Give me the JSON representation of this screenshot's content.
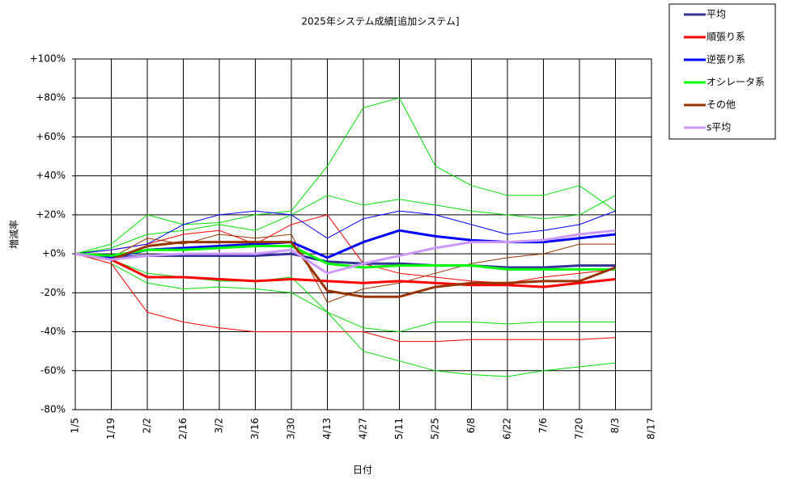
{
  "chart_data": {
    "type": "line",
    "title": "2025年システム成績[追加システム]",
    "x_label": "日付",
    "y_label": "増減率",
    "categories": [
      "1/5",
      "1/19",
      "2/2",
      "2/16",
      "3/2",
      "3/16",
      "3/30",
      "4/13",
      "4/27",
      "5/11",
      "5/25",
      "6/8",
      "6/22",
      "7/6",
      "7/20",
      "8/3",
      "8/17"
    ],
    "ylim": [
      -80,
      100
    ],
    "yticks": [
      {
        "value": -80,
        "label": "-80%"
      },
      {
        "value": -60,
        "label": "-60%"
      },
      {
        "value": -40,
        "label": "-40%"
      },
      {
        "value": -20,
        "label": "-20%"
      },
      {
        "value": 0,
        "label": "+0%"
      },
      {
        "value": 20,
        "label": "+20%"
      },
      {
        "value": 40,
        "label": "+40%"
      },
      {
        "value": 60,
        "label": "+60%"
      },
      {
        "value": 80,
        "label": "+80%"
      },
      {
        "value": 100,
        "label": "+100%"
      }
    ],
    "grid": true,
    "legend": "outside-top-right",
    "background_series": [
      {
        "color": "#00dd00",
        "values": [
          0,
          5,
          20,
          15,
          16,
          20,
          22,
          45,
          75,
          80,
          45,
          35,
          30,
          30,
          35,
          22,
          null
        ]
      },
      {
        "color": "#00dd00",
        "values": [
          0,
          -5,
          -15,
          -18,
          -17,
          -18,
          -20,
          -30,
          -50,
          -55,
          -60,
          -62,
          -63,
          -60,
          -58,
          -56,
          null
        ]
      },
      {
        "color": "#00dd00",
        "values": [
          0,
          -3,
          -10,
          -12,
          -14,
          -14,
          -12,
          -30,
          -38,
          -40,
          -35,
          -35,
          -36,
          -35,
          -35,
          -35,
          null
        ]
      },
      {
        "color": "#00dd00",
        "values": [
          0,
          3,
          10,
          12,
          15,
          12,
          20,
          30,
          25,
          28,
          25,
          22,
          20,
          18,
          20,
          30,
          null
        ]
      },
      {
        "color": "#ff0000",
        "values": [
          0,
          -5,
          -30,
          -35,
          -38,
          -40,
          -40,
          -40,
          -40,
          -45,
          -45,
          -44,
          -44,
          -44,
          -44,
          -43,
          null
        ]
      },
      {
        "color": "#ff0000",
        "values": [
          0,
          2,
          5,
          10,
          12,
          5,
          15,
          20,
          -5,
          -10,
          -12,
          -14,
          -15,
          -12,
          -10,
          -8,
          null
        ]
      },
      {
        "color": "#0000ff",
        "values": [
          0,
          2,
          5,
          15,
          20,
          22,
          20,
          8,
          18,
          22,
          20,
          15,
          10,
          12,
          15,
          22,
          null
        ]
      },
      {
        "color": "#993300",
        "values": [
          0,
          -2,
          8,
          5,
          10,
          8,
          10,
          -25,
          -18,
          -15,
          -10,
          -5,
          -2,
          0,
          5,
          5,
          null
        ]
      }
    ],
    "series": [
      {
        "name": "平均",
        "color": "#333399",
        "values": [
          0,
          -2,
          -1,
          -1,
          -1,
          -1,
          0,
          -4,
          -5,
          -5,
          -6,
          -6,
          -7,
          -7,
          -6,
          -6,
          null
        ]
      },
      {
        "name": "順張り系",
        "color": "#ff0000",
        "values": [
          0,
          -3,
          -12,
          -12,
          -13,
          -14,
          -13,
          -14,
          -15,
          -14,
          -15,
          -16,
          -16,
          -17,
          -15,
          -13,
          null
        ]
      },
      {
        "name": "逆張り系",
        "color": "#0000ff",
        "values": [
          0,
          -2,
          2,
          3,
          4,
          5,
          6,
          -2,
          6,
          12,
          9,
          7,
          6,
          6,
          8,
          10,
          null
        ]
      },
      {
        "name": "オシレータ系",
        "color": "#00ff00",
        "values": [
          0,
          -1,
          2,
          2,
          3,
          4,
          4,
          -5,
          -7,
          -6,
          -6,
          -6,
          -8,
          -8,
          -8,
          -8,
          null
        ]
      },
      {
        "name": "その他",
        "color": "#993300",
        "values": [
          0,
          -3,
          4,
          6,
          6,
          6,
          6,
          -19,
          -22,
          -22,
          -17,
          -15,
          -15,
          -14,
          -14,
          -7,
          null
        ]
      },
      {
        "name": "s平均",
        "color": "#cc99ff",
        "values": [
          0,
          -3,
          -1,
          0,
          0,
          0,
          2,
          -10,
          -5,
          -1,
          3,
          6,
          6,
          7,
          10,
          12,
          null
        ]
      }
    ]
  }
}
